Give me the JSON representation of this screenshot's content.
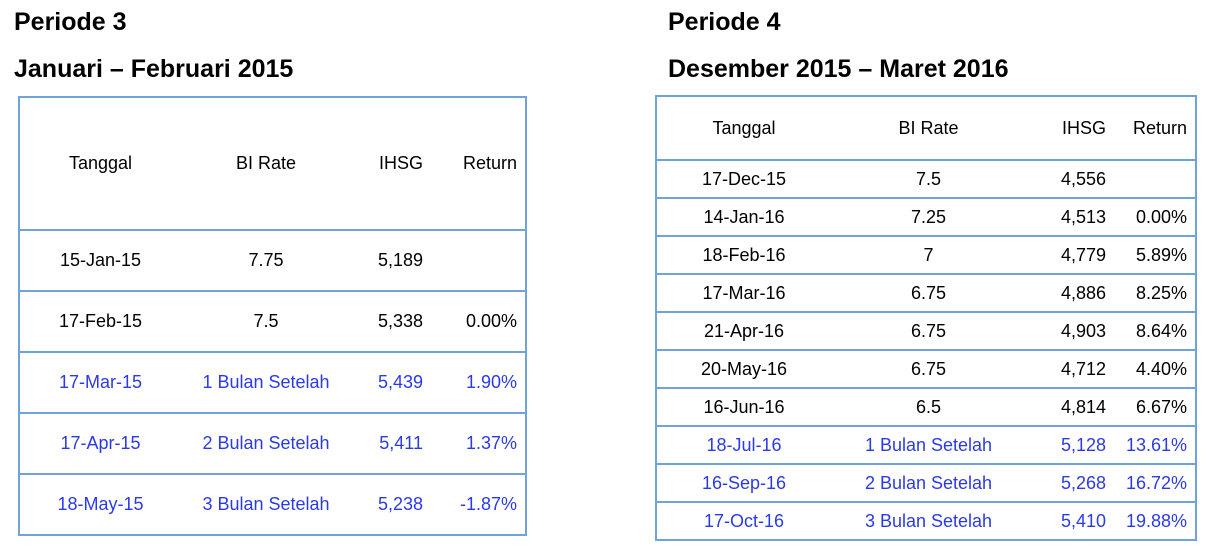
{
  "colors": {
    "table_border": "#6FA3D9",
    "highlight_text": "#2B3AE8",
    "body_text": "#000000"
  },
  "left_panel": {
    "period_title": "Periode 3",
    "period_range": "Januari – Februari 2015",
    "table": {
      "headers": [
        "Tanggal",
        "BI Rate",
        "IHSG",
        "Return"
      ],
      "rows": [
        {
          "tanggal": "15-Jan-15",
          "bi_rate": "7.75",
          "ihsg": "5,189",
          "return": "",
          "highlight": false
        },
        {
          "tanggal": "17-Feb-15",
          "bi_rate": "7.5",
          "ihsg": "5,338",
          "return": "0.00%",
          "highlight": false
        },
        {
          "tanggal": "17-Mar-15",
          "bi_rate": "1 Bulan Setelah",
          "ihsg": "5,439",
          "return": "1.90%",
          "highlight": true
        },
        {
          "tanggal": "17-Apr-15",
          "bi_rate": "2 Bulan Setelah",
          "ihsg": "5,411",
          "return": "1.37%",
          "highlight": true
        },
        {
          "tanggal": "18-May-15",
          "bi_rate": "3 Bulan Setelah",
          "ihsg": "5,238",
          "return": "-1.87%",
          "highlight": true
        }
      ]
    }
  },
  "right_panel": {
    "period_title": "Periode 4",
    "period_range": "Desember 2015 – Maret 2016",
    "table": {
      "headers": [
        "Tanggal",
        "BI Rate",
        "IHSG",
        "Return"
      ],
      "rows": [
        {
          "tanggal": "17-Dec-15",
          "bi_rate": "7.5",
          "ihsg": "4,556",
          "return": "",
          "highlight": false
        },
        {
          "tanggal": "14-Jan-16",
          "bi_rate": "7.25",
          "ihsg": "4,513",
          "return": "0.00%",
          "highlight": false
        },
        {
          "tanggal": "18-Feb-16",
          "bi_rate": "7",
          "ihsg": "4,779",
          "return": "5.89%",
          "highlight": false
        },
        {
          "tanggal": "17-Mar-16",
          "bi_rate": "6.75",
          "ihsg": "4,886",
          "return": "8.25%",
          "highlight": false
        },
        {
          "tanggal": "21-Apr-16",
          "bi_rate": "6.75",
          "ihsg": "4,903",
          "return": "8.64%",
          "highlight": false
        },
        {
          "tanggal": "20-May-16",
          "bi_rate": "6.75",
          "ihsg": "4,712",
          "return": "4.40%",
          "highlight": false
        },
        {
          "tanggal": "16-Jun-16",
          "bi_rate": "6.5",
          "ihsg": "4,814",
          "return": "6.67%",
          "highlight": false
        },
        {
          "tanggal": "18-Jul-16",
          "bi_rate": "1 Bulan Setelah",
          "ihsg": "5,128",
          "return": "13.61%",
          "highlight": true
        },
        {
          "tanggal": "16-Sep-16",
          "bi_rate": "2 Bulan Setelah",
          "ihsg": "5,268",
          "return": "16.72%",
          "highlight": true
        },
        {
          "tanggal": "17-Oct-16",
          "bi_rate": "3 Bulan Setelah",
          "ihsg": "5,410",
          "return": "19.88%",
          "highlight": true
        }
      ]
    }
  }
}
